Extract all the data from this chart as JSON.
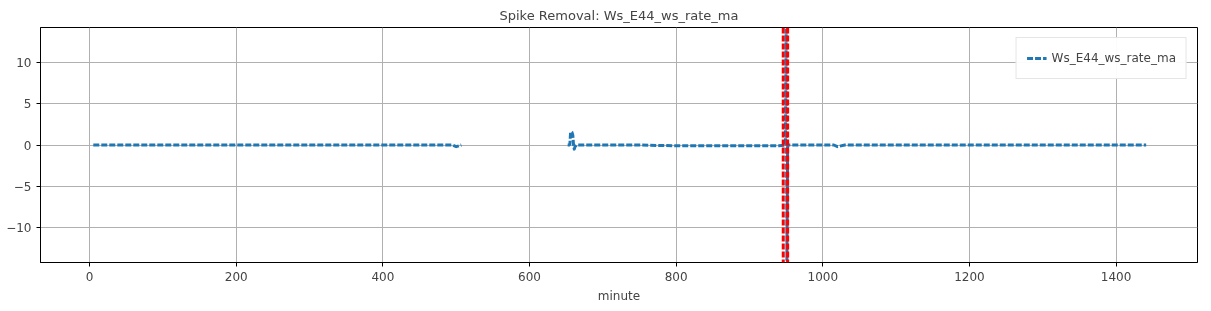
{
  "chart_data": {
    "type": "line",
    "title": "Spike Removal: Ws_E44_ws_rate_ma",
    "xlabel": "minute",
    "x": [
      5,
      100,
      200,
      300,
      400,
      495,
      500,
      507,
      508,
      652,
      654,
      655,
      656,
      658,
      659,
      660,
      661,
      662,
      664,
      670,
      700,
      750,
      800,
      850,
      900,
      940,
      949,
      950,
      951,
      952,
      960,
      980,
      1000,
      1015,
      1020,
      1030,
      1100,
      1200,
      1300,
      1400,
      1441
    ],
    "series": [
      {
        "name": "Ws_E44_ws_rate_ma",
        "color": "#1f77b4",
        "values": [
          0,
          0,
          0,
          0,
          0,
          0,
          -0.2,
          0,
          null,
          0,
          0,
          0.1,
          1.6,
          1.5,
          1.2,
          0,
          -0.5,
          -0.2,
          0,
          0,
          0,
          0,
          -0.1,
          -0.1,
          -0.1,
          -0.1,
          0,
          13.9,
          -13.9,
          0,
          0,
          0,
          0,
          0,
          -0.2,
          0,
          0,
          0,
          0,
          0,
          0
        ]
      }
    ],
    "xlim": [
      -67,
      1511
    ],
    "ylim": [
      -14.2,
      14.2
    ],
    "xticks": [
      0,
      200,
      400,
      600,
      800,
      1000,
      1200,
      1400
    ],
    "yticks": [
      -10,
      -5,
      0,
      5,
      10
    ],
    "ref_lines": [
      {
        "axis": "x",
        "value": 946,
        "color": "#ff0000",
        "line_style": "dashed"
      },
      {
        "axis": "x",
        "value": 952,
        "color": "#ff0000",
        "line_style": "dashed"
      }
    ],
    "grid": true,
    "legend": "top right",
    "line_style": "dashed"
  }
}
